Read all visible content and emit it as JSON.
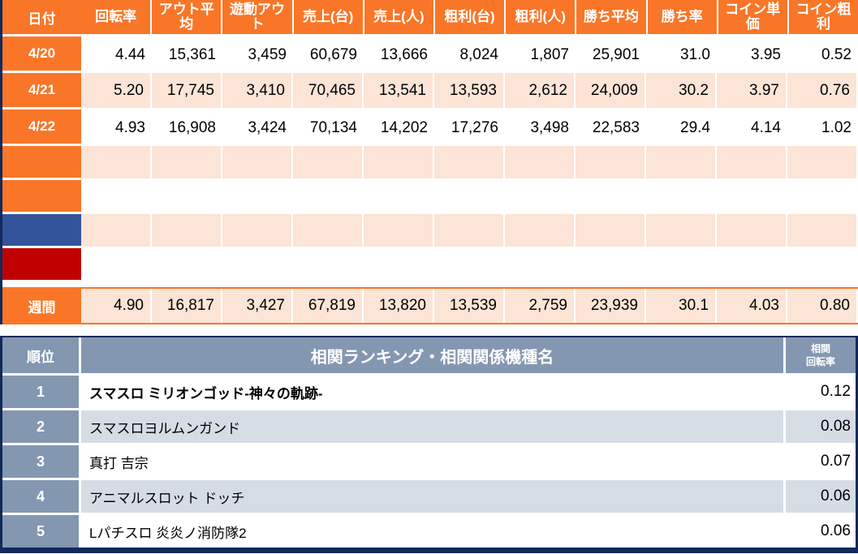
{
  "colors": {
    "orange": "#F97628",
    "pink": "#FCE4D6",
    "blue": "#33549A",
    "red": "#C00000",
    "navy": "#12295C",
    "slate": "#8497B0",
    "slate_light": "#D6DCE4"
  },
  "daily_table": {
    "columns": [
      "日付",
      "回転率",
      "アウト平均",
      "遊動アウト",
      "売上(台)",
      "売上(人)",
      "粗利(台)",
      "粗利(人)",
      "勝ち平均",
      "勝ち率",
      "コイン単価",
      "コイン粗利"
    ],
    "rows": [
      {
        "label": "4/20",
        "zebra": "white",
        "values": [
          "4.44",
          "15,361",
          "3,459",
          "60,679",
          "13,666",
          "8,024",
          "1,807",
          "25,901",
          "31.0",
          "3.95",
          "0.52"
        ]
      },
      {
        "label": "4/21",
        "zebra": "pink",
        "values": [
          "5.20",
          "17,745",
          "3,410",
          "70,465",
          "13,541",
          "13,593",
          "2,612",
          "24,009",
          "30.2",
          "3.97",
          "0.76"
        ]
      },
      {
        "label": "4/22",
        "zebra": "white",
        "values": [
          "4.93",
          "16,908",
          "3,424",
          "70,134",
          "14,202",
          "17,276",
          "3,498",
          "22,583",
          "29.4",
          "4.14",
          "1.02"
        ]
      }
    ],
    "empty_rows": [
      {
        "label_color": "orange",
        "zebra": "pink"
      },
      {
        "label_color": "orange",
        "zebra": "white"
      },
      {
        "label_color": "blue",
        "zebra": "pink"
      },
      {
        "label_color": "red",
        "zebra": "white"
      }
    ],
    "weekly_row": {
      "label": "週間",
      "values": [
        "4.90",
        "16,817",
        "3,427",
        "67,819",
        "13,820",
        "13,539",
        "2,759",
        "23,939",
        "30.1",
        "4.03",
        "0.80"
      ]
    }
  },
  "ranking_table": {
    "rank_header": "順位",
    "name_header": "相関ランキング・相関関係機種名",
    "rate_header_lines": [
      "相関",
      "回転率"
    ],
    "rows": [
      {
        "rank": "1",
        "name": "スマスロ ミリオンゴッド-神々の軌跡-",
        "rate": "0.12",
        "bold": true
      },
      {
        "rank": "2",
        "name": "スマスロヨルムンガンド",
        "rate": "0.08",
        "bold": false
      },
      {
        "rank": "3",
        "name": "真打 吉宗",
        "rate": "0.07",
        "bold": false
      },
      {
        "rank": "4",
        "name": "アニマルスロット ドッチ",
        "rate": "0.06",
        "bold": false
      },
      {
        "rank": "5",
        "name": "Lパチスロ 炎炎ノ消防隊2",
        "rate": "0.06",
        "bold": false
      }
    ]
  }
}
